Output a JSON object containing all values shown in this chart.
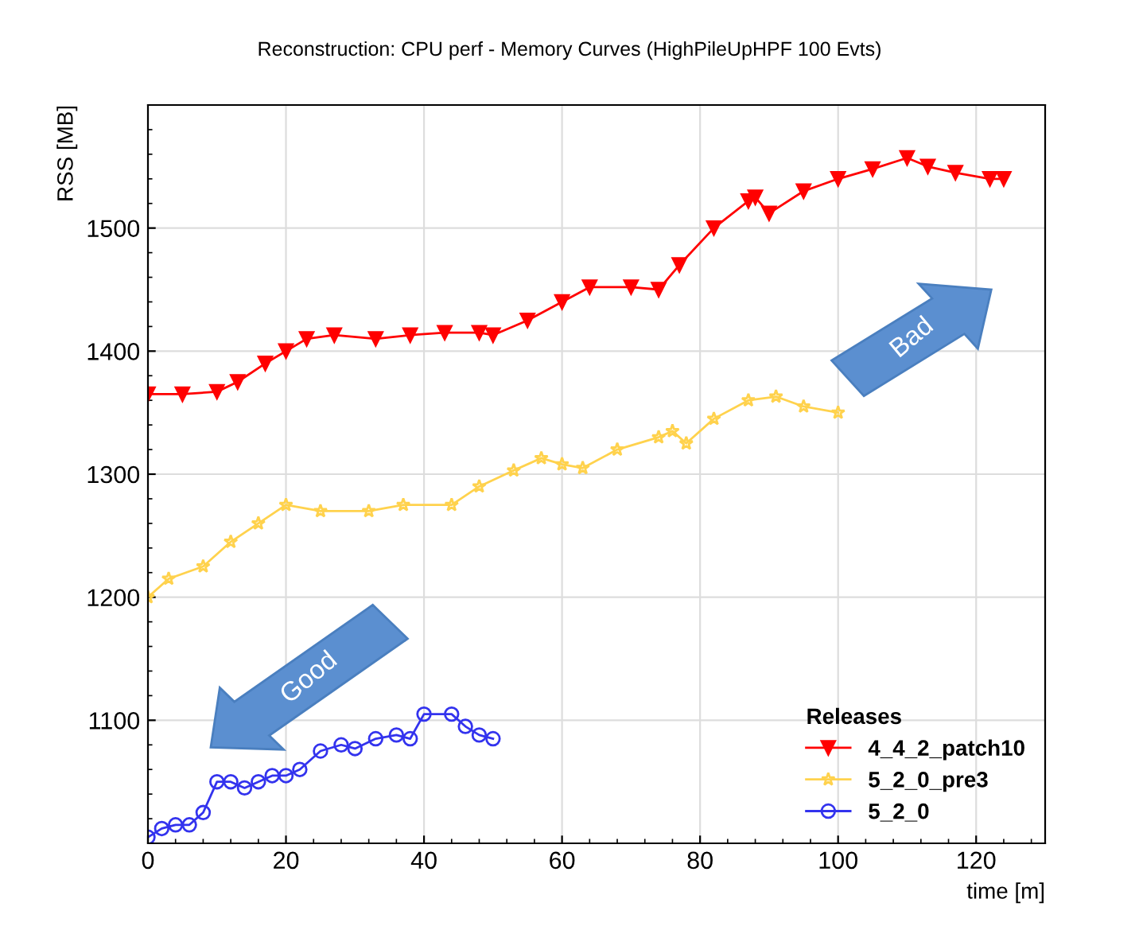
{
  "chart_data": {
    "type": "line",
    "title": "Reconstruction: CPU perf - Memory Curves (HighPileUpHPF 100 Evts)",
    "xlabel": "time [m]",
    "ylabel": "RSS [MB]",
    "legend_title": "Releases",
    "legend": "bottom right",
    "grid": true,
    "xlim": [
      0,
      130
    ],
    "xticks": [
      0,
      20,
      40,
      60,
      80,
      100,
      120
    ],
    "ylim": [
      1000,
      1600
    ],
    "yticks": [
      1100,
      1200,
      1300,
      1400,
      1500
    ],
    "annotations": [
      "Good",
      "Bad"
    ],
    "series": [
      {
        "name": "4_4_2_patch10",
        "color": "#ff0000",
        "marker": "triangle",
        "x": [
          0,
          5,
          10,
          13,
          17,
          20,
          23,
          27,
          33,
          38,
          43,
          48,
          50,
          55,
          60,
          64,
          70,
          74,
          77,
          82,
          87,
          88,
          90,
          95,
          100,
          105,
          110,
          113,
          117,
          122,
          124
        ],
        "values": [
          1365,
          1365,
          1367,
          1375,
          1390,
          1400,
          1410,
          1413,
          1410,
          1413,
          1415,
          1415,
          1413,
          1425,
          1440,
          1452,
          1452,
          1450,
          1470,
          1500,
          1522,
          1525,
          1512,
          1530,
          1540,
          1548,
          1557,
          1550,
          1545,
          1540,
          1540
        ]
      },
      {
        "name": "5_2_0_pre3",
        "color": "#ffd24d",
        "marker": "star",
        "x": [
          0,
          3,
          8,
          12,
          16,
          20,
          25,
          32,
          37,
          44,
          48,
          53,
          57,
          60,
          63,
          68,
          74,
          76,
          78,
          82,
          87,
          91,
          95,
          100
        ],
        "values": [
          1200,
          1215,
          1225,
          1245,
          1260,
          1275,
          1270,
          1270,
          1275,
          1275,
          1290,
          1303,
          1313,
          1308,
          1305,
          1320,
          1330,
          1335,
          1325,
          1345,
          1360,
          1363,
          1355,
          1350
        ]
      },
      {
        "name": "5_2_0",
        "color": "#3333ee",
        "marker": "circle",
        "x": [
          0,
          2,
          4,
          6,
          8,
          10,
          12,
          14,
          16,
          18,
          20,
          22,
          25,
          28,
          30,
          33,
          36,
          38,
          40,
          44,
          46,
          48,
          50
        ],
        "values": [
          1005,
          1012,
          1015,
          1015,
          1025,
          1050,
          1050,
          1045,
          1050,
          1055,
          1055,
          1060,
          1075,
          1080,
          1077,
          1085,
          1088,
          1085,
          1105,
          1105,
          1095,
          1088,
          1085
        ]
      }
    ]
  }
}
